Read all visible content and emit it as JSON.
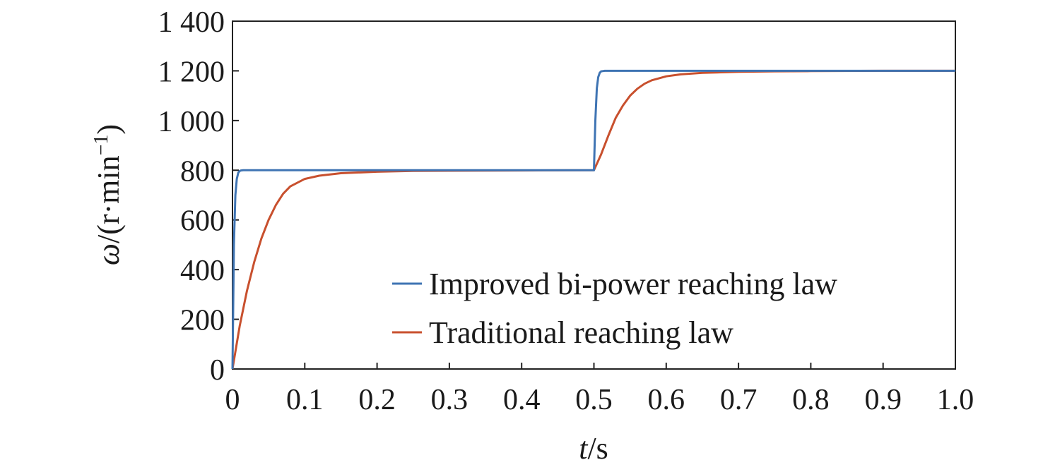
{
  "chart_data": {
    "type": "line",
    "xlabel": {
      "var": "t",
      "unit": "/s"
    },
    "ylabel": {
      "var": "ω",
      "unit": "/(r·min",
      "exp": "−1",
      "close": ")"
    },
    "xlim": [
      0,
      1.0
    ],
    "ylim": [
      0,
      1400
    ],
    "xticks": [
      0,
      0.1,
      0.2,
      0.3,
      0.4,
      0.5,
      0.6,
      0.7,
      0.8,
      0.9,
      1.0
    ],
    "xtick_labels": [
      "0",
      "0.1",
      "0.2",
      "0.3",
      "0.4",
      "0.5",
      "0.6",
      "0.7",
      "0.8",
      "0.9",
      "1.0"
    ],
    "yticks": [
      0,
      200,
      400,
      600,
      800,
      1000,
      1200,
      1400
    ],
    "ytick_labels": [
      "0",
      "200",
      "400",
      "600",
      "800",
      "1 000",
      "1 200",
      "1 400"
    ],
    "grid": false,
    "legend_position": "lower-right",
    "series": [
      {
        "name": "Improved bi-power reaching law",
        "color": "#3f74b3",
        "x": [
          0,
          0.002,
          0.004,
          0.006,
          0.008,
          0.01,
          0.012,
          0.015,
          0.02,
          0.05,
          0.1,
          0.2,
          0.3,
          0.4,
          0.5,
          0.502,
          0.504,
          0.506,
          0.508,
          0.51,
          0.512,
          0.515,
          0.52,
          0.6,
          0.7,
          0.8,
          0.9,
          1.0
        ],
        "y": [
          0,
          500,
          700,
          765,
          790,
          797,
          799,
          800,
          800,
          800,
          800,
          800,
          800,
          800,
          800,
          1000,
          1130,
          1175,
          1192,
          1198,
          1199,
          1200,
          1200,
          1200,
          1200,
          1200,
          1200,
          1200
        ]
      },
      {
        "name": "Traditional reaching law",
        "color": "#c8502e",
        "x": [
          0,
          0.01,
          0.02,
          0.03,
          0.04,
          0.05,
          0.06,
          0.07,
          0.08,
          0.1,
          0.12,
          0.15,
          0.2,
          0.25,
          0.3,
          0.4,
          0.5,
          0.51,
          0.52,
          0.53,
          0.54,
          0.55,
          0.56,
          0.57,
          0.58,
          0.6,
          0.62,
          0.65,
          0.7,
          0.75,
          0.8,
          0.9,
          1.0
        ],
        "y": [
          0,
          173,
          315,
          430,
          525,
          600,
          660,
          705,
          735,
          765,
          778,
          788,
          794,
          797,
          798,
          799,
          800,
          864,
          940,
          1010,
          1060,
          1100,
          1128,
          1148,
          1162,
          1178,
          1186,
          1192,
          1196,
          1198,
          1199,
          1200,
          1200
        ]
      }
    ]
  }
}
